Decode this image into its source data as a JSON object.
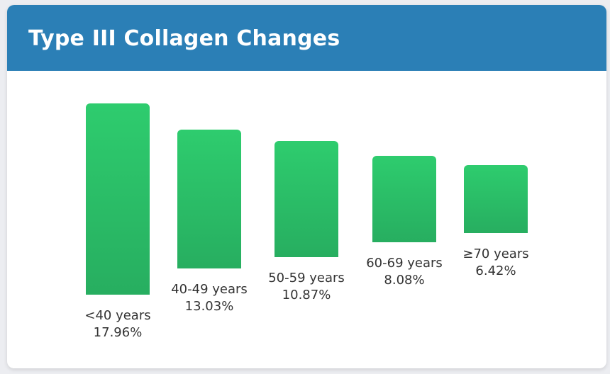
{
  "chart_data": {
    "type": "bar",
    "title": "Type III Collagen Changes",
    "categories": [
      "<40 years",
      "40-49 years",
      "50-59 years",
      "60-69 years",
      "≥70 years"
    ],
    "values": [
      17.96,
      13.03,
      10.87,
      8.08,
      6.42
    ],
    "value_labels": [
      "17.96%",
      "13.03%",
      "10.87%",
      "8.08%",
      "6.42%"
    ],
    "colors": {
      "header": "#2b7fb6",
      "bar_top": "#2ecc6e",
      "bar_bottom": "#27ae60"
    }
  }
}
